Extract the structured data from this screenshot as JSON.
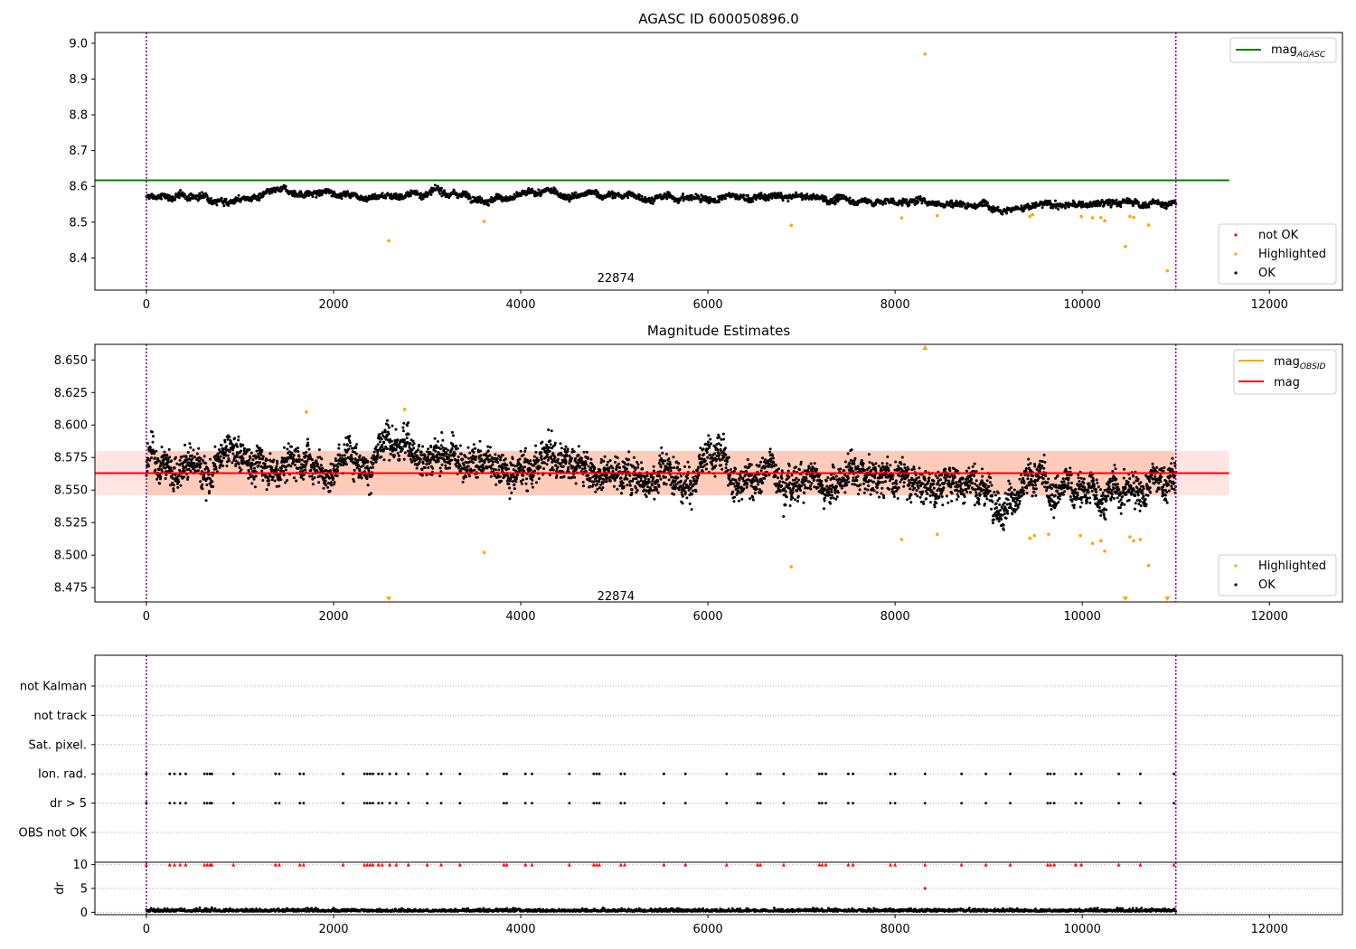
{
  "chart_data": [
    {
      "type": "scatter",
      "title": "AGASC ID 600050896.0",
      "xlim": [
        -550,
        12780
      ],
      "ylim": [
        8.31,
        9.03
      ],
      "x_ticks": [
        0,
        2000,
        4000,
        6000,
        8000,
        10000,
        12000
      ],
      "x_tick_labels": [
        "0",
        "2000",
        "4000",
        "6000",
        "8000",
        "10000",
        "12000"
      ],
      "y_ticks": [
        8.4,
        8.5,
        8.6,
        8.7,
        8.8,
        8.9,
        9.0
      ],
      "y_tick_labels": [
        "8.4",
        "8.5",
        "8.6",
        "8.7",
        "8.8",
        "8.9",
        "9.0"
      ],
      "obsid_boundaries": [
        0,
        11000
      ],
      "annotation": {
        "text": "22874",
        "x": 5500,
        "y": 8.32
      },
      "reference_lines": [
        {
          "name": "mag",
          "subscript": "AGASC",
          "y": 8.617,
          "x": [
            -550,
            11570
          ],
          "color": "#008000"
        }
      ],
      "series": [
        {
          "name": "not OK",
          "color": "#ff0000",
          "points": []
        },
        {
          "name": "Highlighted",
          "color": "#ffa500",
          "points": [
            [
              2590,
              8.448
            ],
            [
              3610,
              8.502
            ],
            [
              6890,
              8.491
            ],
            [
              8070,
              8.512
            ],
            [
              8320,
              8.97
            ],
            [
              8450,
              8.518
            ],
            [
              9440,
              8.516
            ],
            [
              9470,
              8.521
            ],
            [
              9990,
              8.516
            ],
            [
              10110,
              8.512
            ],
            [
              10200,
              8.513
            ],
            [
              10240,
              8.504
            ],
            [
              10460,
              8.432
            ],
            [
              10510,
              8.516
            ],
            [
              10550,
              8.513
            ],
            [
              10710,
              8.492
            ],
            [
              10910,
              8.364
            ]
          ]
        },
        {
          "name": "OK",
          "color": "#000000",
          "trend": [
            [
              0,
              8.568
            ],
            [
              1500,
              8.576
            ],
            [
              2800,
              8.585
            ],
            [
              4000,
              8.576
            ],
            [
              5500,
              8.568
            ],
            [
              6800,
              8.566
            ],
            [
              8000,
              8.558
            ],
            [
              9000,
              8.556
            ],
            [
              10000,
              8.545
            ],
            [
              11000,
              8.556
            ]
          ],
          "x_range": [
            0,
            11000
          ],
          "count": 2600
        }
      ],
      "legend": {
        "position": "upper-right",
        "position2": "lower-right"
      }
    },
    {
      "type": "scatter",
      "title": "Magnitude Estimates",
      "xlim": [
        -550,
        12780
      ],
      "ylim": [
        8.464,
        8.662
      ],
      "x_ticks": [
        0,
        2000,
        4000,
        6000,
        8000,
        10000,
        12000
      ],
      "x_tick_labels": [
        "0",
        "2000",
        "4000",
        "6000",
        "8000",
        "10000",
        "12000"
      ],
      "y_ticks": [
        8.475,
        8.5,
        8.525,
        8.55,
        8.575,
        8.6,
        8.625,
        8.65
      ],
      "y_tick_labels": [
        "8.475",
        "8.500",
        "8.525",
        "8.550",
        "8.575",
        "8.600",
        "8.625",
        "8.650"
      ],
      "obsid_boundaries": [
        0,
        11000
      ],
      "annotation": {
        "text": "22874",
        "x": 5500,
        "y": 8.469
      },
      "band": {
        "x": [
          -550,
          11570
        ],
        "y": [
          8.546,
          8.58
        ],
        "colors": [
          "#ffb2b2",
          "#ffc7a0"
        ]
      },
      "reference_lines": [
        {
          "name": "mag",
          "subscript": "OBSID",
          "y": 8.563,
          "x": [
            0,
            11000
          ],
          "color": "#ffa500"
        },
        {
          "name": "mag",
          "subscript": "",
          "y": 8.563,
          "x": [
            -550,
            11570
          ],
          "color": "#ff0000"
        }
      ],
      "series": [
        {
          "name": "Highlighted",
          "color": "#ffa500",
          "points": [
            [
              1710,
              8.61
            ],
            [
              2760,
              8.612
            ],
            [
              3610,
              8.502
            ],
            [
              6890,
              8.491
            ],
            [
              8070,
              8.512
            ],
            [
              8450,
              8.516
            ],
            [
              9440,
              8.513
            ],
            [
              9490,
              8.515
            ],
            [
              9640,
              8.516
            ],
            [
              9980,
              8.515
            ],
            [
              10110,
              8.509
            ],
            [
              10200,
              8.511
            ],
            [
              10240,
              8.503
            ],
            [
              10510,
              8.514
            ],
            [
              10550,
              8.511
            ],
            [
              10620,
              8.512
            ],
            [
              10710,
              8.492
            ]
          ]
        },
        {
          "name": "Highlighted (off-scale)",
          "color": "#ffa500",
          "points": [
            [
              2590,
              8.466
            ],
            [
              8320,
              8.66
            ],
            [
              10460,
              8.466
            ],
            [
              10910,
              8.466
            ]
          ]
        },
        {
          "name": "OK",
          "color": "#000000",
          "trend": [
            [
              0,
              8.568
            ],
            [
              1500,
              8.576
            ],
            [
              2800,
              8.585
            ],
            [
              4000,
              8.576
            ],
            [
              5500,
              8.568
            ],
            [
              6800,
              8.566
            ],
            [
              8000,
              8.558
            ],
            [
              9000,
              8.556
            ],
            [
              10000,
              8.545
            ],
            [
              11000,
              8.556
            ]
          ],
          "x_range": [
            0,
            11000
          ],
          "count": 4200
        }
      ],
      "legend": {
        "position": "upper-right",
        "position2": "lower-right"
      }
    },
    {
      "type": "scatter",
      "title": "",
      "xlim": [
        -550,
        12780
      ],
      "flag_rows": [
        "not Kalman",
        "not track",
        "Sat. pixel.",
        "Ion. rad.",
        "dr > 5",
        "OBS not OK"
      ],
      "obsid_boundaries": [
        0,
        11000
      ],
      "series": [
        {
          "name": "Ion. rad.",
          "color": "#000000",
          "x": [
            0,
            250,
            300,
            360,
            420,
            620,
            650,
            680,
            700,
            930,
            1380,
            1420,
            1640,
            1680,
            2100,
            2330,
            2360,
            2390,
            2420,
            2480,
            2520,
            2600,
            2670,
            2800,
            3000,
            3150,
            3350,
            3820,
            3850,
            4050,
            4120,
            4520,
            4780,
            4810,
            4840,
            5070,
            5110,
            5530,
            5760,
            6200,
            6530,
            6560,
            6810,
            7190,
            7220,
            7260,
            7500,
            7550,
            7950,
            8000,
            8320,
            8710,
            8970,
            9230,
            9630,
            9660,
            9700,
            9930,
            9990,
            10390,
            10620,
            10980
          ]
        },
        {
          "name": "dr > 5",
          "color": "#000000",
          "x": [
            0,
            250,
            300,
            360,
            420,
            620,
            650,
            680,
            700,
            930,
            1380,
            1420,
            1640,
            1680,
            2100,
            2330,
            2360,
            2390,
            2420,
            2480,
            2520,
            2600,
            2670,
            2800,
            3000,
            3150,
            3350,
            3820,
            3850,
            4050,
            4120,
            4520,
            4780,
            4810,
            4840,
            5070,
            5110,
            5530,
            5760,
            6200,
            6530,
            6560,
            6810,
            7190,
            7220,
            7260,
            7500,
            7550,
            7950,
            8000,
            8320,
            8710,
            8970,
            9230,
            9630,
            9660,
            9700,
            9930,
            9990,
            10390,
            10620,
            10980
          ]
        }
      ]
    },
    {
      "type": "scatter",
      "title": "",
      "xlim": [
        -550,
        12780
      ],
      "ylim": [
        -0.5,
        10.5
      ],
      "ylabel": "dr",
      "x_ticks": [
        0,
        2000,
        4000,
        6000,
        8000,
        10000,
        12000
      ],
      "x_tick_labels": [
        "0",
        "2000",
        "4000",
        "6000",
        "8000",
        "10000",
        "12000"
      ],
      "y_ticks": [
        0,
        5,
        10
      ],
      "y_tick_labels": [
        "0",
        "5",
        "10"
      ],
      "obsid_boundaries": [
        0,
        11000
      ],
      "series": [
        {
          "name": "dr (clipped at 10)",
          "color": "#ff0000",
          "y": 10,
          "x": [
            0,
            250,
            300,
            360,
            420,
            620,
            650,
            680,
            700,
            930,
            1380,
            1420,
            1640,
            1680,
            2100,
            2330,
            2360,
            2390,
            2420,
            2480,
            2520,
            2600,
            2670,
            2800,
            3000,
            3150,
            3350,
            3820,
            3850,
            4050,
            4120,
            4520,
            4780,
            4810,
            4840,
            5070,
            5110,
            5530,
            5760,
            6200,
            6530,
            6560,
            6810,
            7190,
            7220,
            7260,
            7500,
            7550,
            7950,
            8000,
            8320,
            8710,
            8970,
            9230,
            9630,
            9660,
            9700,
            9930,
            9990,
            10390,
            10620,
            10980
          ]
        },
        {
          "name": "dr outlier",
          "color": "#ff0000",
          "points": [
            [
              8320,
              5.0
            ]
          ]
        },
        {
          "name": "dr",
          "color": "#000000",
          "y_range": [
            0,
            1.0
          ],
          "x_range": [
            0,
            11000
          ],
          "count": 2200
        }
      ]
    }
  ]
}
